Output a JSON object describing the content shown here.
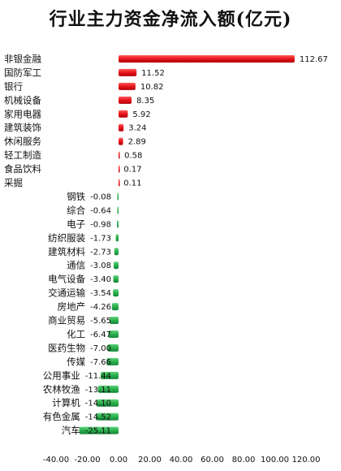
{
  "chart_data": {
    "type": "bar",
    "orientation": "horizontal",
    "title": "行业主力资金净流入额(亿元)",
    "categories": [
      "非银金融",
      "国防军工",
      "银行",
      "机械设备",
      "家用电器",
      "建筑装饰",
      "休闲服务",
      "轻工制造",
      "食品饮料",
      "采掘",
      "钢铁",
      "综合",
      "电子",
      "纺织服装",
      "建筑材料",
      "通信",
      "电气设备",
      "交通运输",
      "房地产",
      "商业贸易",
      "化工",
      "医药生物",
      "传媒",
      "公用事业",
      "农林牧渔",
      "计算机",
      "有色金属",
      "汽车"
    ],
    "values": [
      112.67,
      11.52,
      10.82,
      8.35,
      5.92,
      3.24,
      2.89,
      0.58,
      0.17,
      0.11,
      -0.08,
      -0.64,
      -0.98,
      -1.73,
      -2.73,
      -3.08,
      -3.4,
      -3.54,
      -4.26,
      -5.65,
      -6.47,
      -7.0,
      -7.66,
      -11.44,
      -13.11,
      -14.1,
      -14.52,
      -25.11
    ],
    "value_labels": [
      "112.67",
      "11.52",
      "10.82",
      "8.35",
      "5.92",
      "3.24",
      "2.89",
      "0.58",
      "0.17",
      "0.11",
      "-0.08",
      "-0.64",
      "-0.98",
      "-1.73",
      "-2.73",
      "-3.08",
      "-3.40",
      "-3.54",
      "-4.26",
      "-5.65",
      "-6.47",
      "-7.00",
      "-7.66",
      "-11.44",
      "-13.11",
      "-14.10",
      "-14.52",
      "-25.11"
    ],
    "xlim": [
      -40,
      120
    ],
    "xticks": [
      -40,
      -20,
      0,
      20,
      40,
      60,
      80,
      100,
      120
    ],
    "xtick_labels": [
      "-40.00",
      "-20.00",
      "0.00",
      "20.00",
      "40.00",
      "60.00",
      "80.00",
      "100.00",
      "120.00"
    ],
    "grid": false,
    "legend": "none",
    "colors": {
      "positive": "#e8141b",
      "negative": "#2bb04c"
    }
  }
}
